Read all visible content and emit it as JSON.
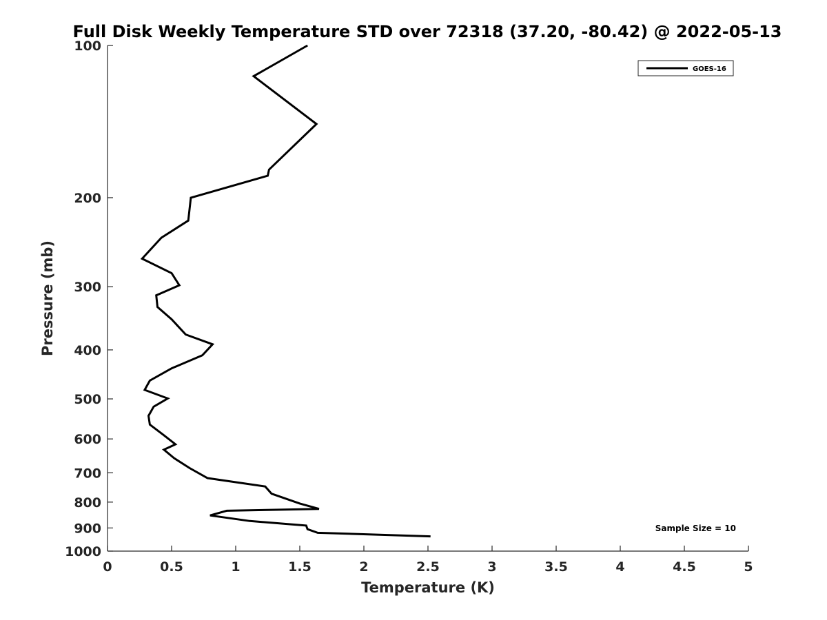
{
  "chart_data": {
    "type": "line",
    "title": "Full Disk Weekly Temperature STD over 72318 (37.20, -80.42) @ 2022-05-13",
    "xlabel": "Temperature (K)",
    "ylabel": "Pressure (mb)",
    "xlim": [
      0,
      5
    ],
    "ylim": [
      100,
      1000
    ],
    "y_scale": "log",
    "y_reversed": true,
    "grid": false,
    "legend_position": "top-right",
    "x_ticks": [
      "0",
      "0.5",
      "1",
      "1.5",
      "2",
      "2.5",
      "3",
      "3.5",
      "4",
      "4.5",
      "5"
    ],
    "y_ticks": [
      "100",
      "200",
      "300",
      "400",
      "500",
      "600",
      "700",
      "800",
      "900",
      "1000"
    ],
    "annotation": "Sample Size = 10",
    "series": [
      {
        "name": "GOES-16",
        "color": "#000000",
        "x": [
          1.56,
          1.14,
          1.63,
          1.26,
          1.25,
          0.65,
          0.63,
          0.42,
          0.27,
          0.5,
          0.56,
          0.38,
          0.39,
          0.5,
          0.61,
          0.82,
          0.74,
          0.5,
          0.33,
          0.29,
          0.47,
          0.36,
          0.32,
          0.33,
          0.44,
          0.53,
          0.44,
          0.52,
          0.64,
          0.78,
          1.23,
          1.28,
          1.5,
          1.65,
          0.93,
          0.8,
          1.11,
          1.55,
          1.56,
          1.64,
          2.52
        ],
        "y": [
          100,
          115,
          143,
          176,
          181,
          200,
          222,
          240,
          264,
          282,
          298,
          312,
          329,
          348,
          373,
          390,
          410,
          435,
          460,
          480,
          499,
          518,
          540,
          562,
          590,
          615,
          630,
          655,
          685,
          717,
          745,
          770,
          805,
          825,
          832,
          850,
          872,
          890,
          905,
          920,
          935
        ]
      }
    ]
  }
}
